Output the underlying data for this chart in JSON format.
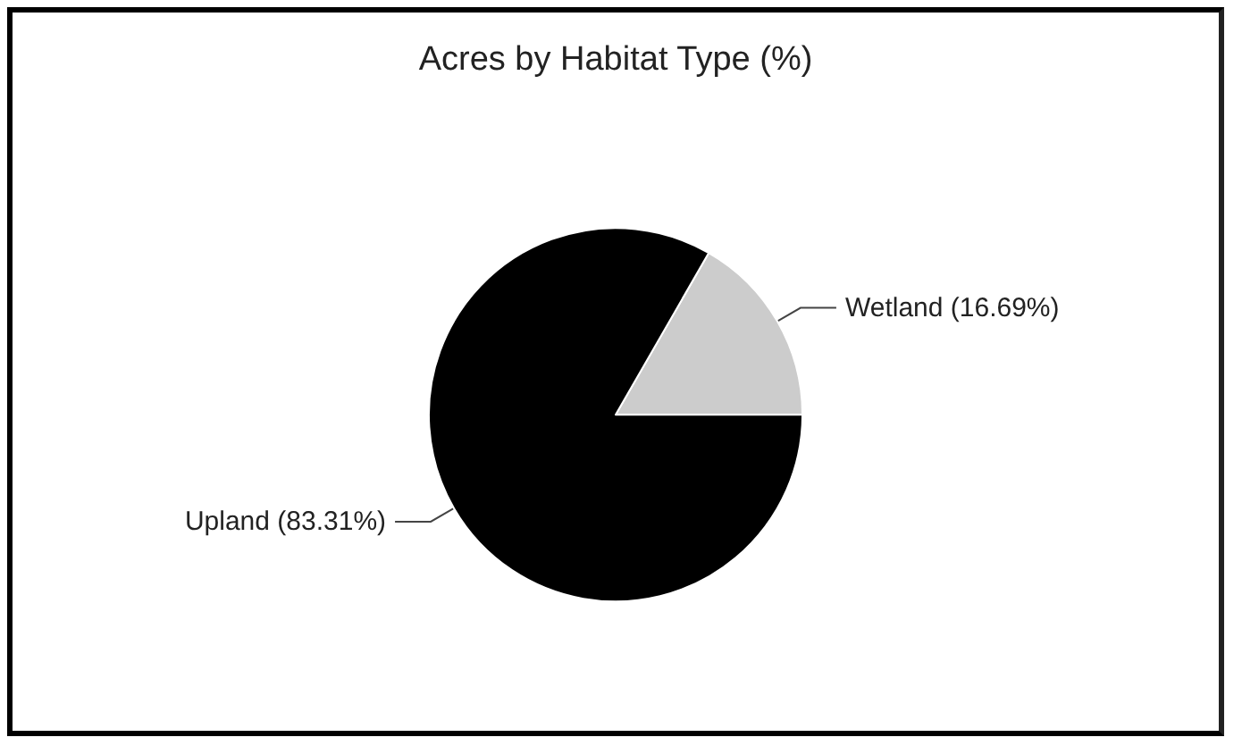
{
  "chart_data": {
    "type": "pie",
    "title": "Acres by Habitat Type (%)",
    "categories": [
      "Wetland",
      "Upland"
    ],
    "values": [
      16.69,
      83.31
    ],
    "value_labels": [
      "(16.69%)",
      "(83.31%)"
    ],
    "colors": [
      "#cccccc",
      "#000000"
    ],
    "legend": false
  }
}
